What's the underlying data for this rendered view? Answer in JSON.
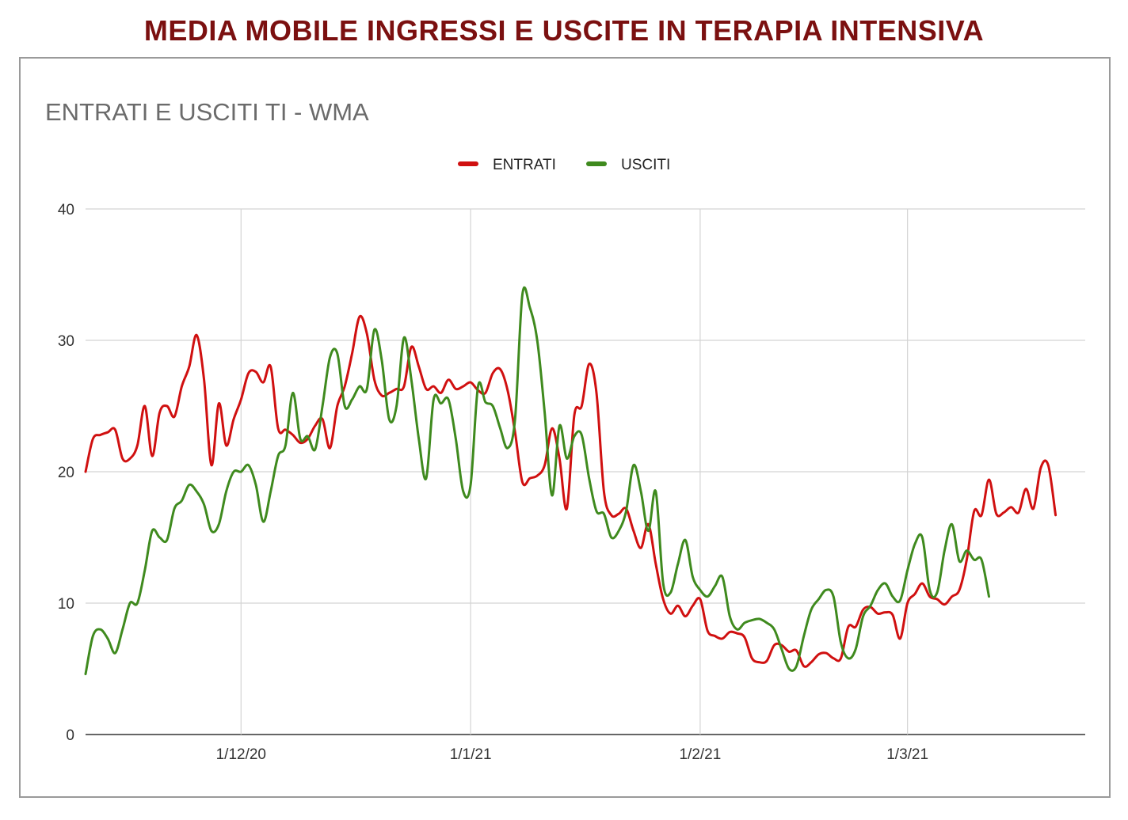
{
  "page_title": "MEDIA MOBILE INGRESSI E USCITE IN TERAPIA INTENSIVA",
  "colors": {
    "title": "#7b1010",
    "entrati": "#d01010",
    "usciti": "#3f8a1e",
    "grid": "#d4d4d4",
    "frame": "#9a9a9a"
  },
  "chart_data": {
    "type": "line",
    "title": "ENTRATI E USCITI TI  - WMA",
    "legend_position": "top-center",
    "grid": true,
    "xlim": [
      "2020-11-10",
      "2021-03-25"
    ],
    "ylim": [
      0,
      40
    ],
    "yticks": [
      0,
      10,
      20,
      30,
      40
    ],
    "xticks": [
      {
        "date": "2020-12-01",
        "label": "1/12/20"
      },
      {
        "date": "2021-01-01",
        "label": "1/1/21"
      },
      {
        "date": "2021-02-01",
        "label": "1/2/21"
      },
      {
        "date": "2021-03-01",
        "label": "1/3/21"
      }
    ],
    "series": [
      {
        "name": "ENTRATI",
        "color": "#d01010",
        "points": [
          [
            "2020-11-10",
            20.0
          ],
          [
            "2020-11-11",
            22.5
          ],
          [
            "2020-11-12",
            22.8
          ],
          [
            "2020-11-13",
            23.0
          ],
          [
            "2020-11-14",
            23.2
          ],
          [
            "2020-11-15",
            21.0
          ],
          [
            "2020-11-16",
            21.0
          ],
          [
            "2020-11-17",
            22.0
          ],
          [
            "2020-11-18",
            25.0
          ],
          [
            "2020-11-19",
            21.2
          ],
          [
            "2020-11-20",
            24.5
          ],
          [
            "2020-11-21",
            25.0
          ],
          [
            "2020-11-22",
            24.2
          ],
          [
            "2020-11-23",
            26.5
          ],
          [
            "2020-11-24",
            28.0
          ],
          [
            "2020-11-25",
            30.4
          ],
          [
            "2020-11-26",
            27.0
          ],
          [
            "2020-11-27",
            20.5
          ],
          [
            "2020-11-28",
            25.2
          ],
          [
            "2020-11-29",
            22.0
          ],
          [
            "2020-11-30",
            24.0
          ],
          [
            "2020-12-01",
            25.5
          ],
          [
            "2020-12-02",
            27.5
          ],
          [
            "2020-12-03",
            27.6
          ],
          [
            "2020-12-04",
            26.8
          ],
          [
            "2020-12-05",
            28.0
          ],
          [
            "2020-12-06",
            23.3
          ],
          [
            "2020-12-07",
            23.2
          ],
          [
            "2020-12-08",
            22.8
          ],
          [
            "2020-12-09",
            22.2
          ],
          [
            "2020-12-10",
            22.5
          ],
          [
            "2020-12-11",
            23.5
          ],
          [
            "2020-12-12",
            24.0
          ],
          [
            "2020-12-13",
            21.8
          ],
          [
            "2020-12-14",
            25.0
          ],
          [
            "2020-12-15",
            26.5
          ],
          [
            "2020-12-16",
            29.0
          ],
          [
            "2020-12-17",
            31.8
          ],
          [
            "2020-12-18",
            30.5
          ],
          [
            "2020-12-19",
            27.0
          ],
          [
            "2020-12-20",
            25.8
          ],
          [
            "2020-12-21",
            26.0
          ],
          [
            "2020-12-22",
            26.3
          ],
          [
            "2020-12-23",
            26.5
          ],
          [
            "2020-12-24",
            29.5
          ],
          [
            "2020-12-25",
            28.0
          ],
          [
            "2020-12-26",
            26.3
          ],
          [
            "2020-12-27",
            26.5
          ],
          [
            "2020-12-28",
            26.0
          ],
          [
            "2020-12-29",
            27.0
          ],
          [
            "2020-12-30",
            26.3
          ],
          [
            "2020-12-31",
            26.5
          ],
          [
            "2021-01-01",
            26.8
          ],
          [
            "2021-01-02",
            26.2
          ],
          [
            "2021-01-03",
            26.0
          ],
          [
            "2021-01-04",
            27.5
          ],
          [
            "2021-01-05",
            27.8
          ],
          [
            "2021-01-06",
            26.2
          ],
          [
            "2021-01-07",
            23.0
          ],
          [
            "2021-01-08",
            19.2
          ],
          [
            "2021-01-09",
            19.5
          ],
          [
            "2021-01-10",
            19.7
          ],
          [
            "2021-01-11",
            20.5
          ],
          [
            "2021-01-12",
            23.3
          ],
          [
            "2021-01-13",
            21.0
          ],
          [
            "2021-01-14",
            17.2
          ],
          [
            "2021-01-15",
            24.3
          ],
          [
            "2021-01-16",
            25.0
          ],
          [
            "2021-01-17",
            28.2
          ],
          [
            "2021-01-18",
            26.0
          ],
          [
            "2021-01-19",
            18.5
          ],
          [
            "2021-01-20",
            16.7
          ],
          [
            "2021-01-21",
            16.8
          ],
          [
            "2021-01-22",
            17.2
          ],
          [
            "2021-01-23",
            15.5
          ],
          [
            "2021-01-24",
            14.2
          ],
          [
            "2021-01-25",
            16.0
          ],
          [
            "2021-01-26",
            13.0
          ],
          [
            "2021-01-27",
            10.3
          ],
          [
            "2021-01-28",
            9.2
          ],
          [
            "2021-01-29",
            9.8
          ],
          [
            "2021-01-30",
            9.0
          ],
          [
            "2021-01-31",
            9.8
          ],
          [
            "2021-02-01",
            10.3
          ],
          [
            "2021-02-02",
            7.9
          ],
          [
            "2021-02-03",
            7.5
          ],
          [
            "2021-02-04",
            7.3
          ],
          [
            "2021-02-05",
            7.8
          ],
          [
            "2021-02-06",
            7.7
          ],
          [
            "2021-02-07",
            7.4
          ],
          [
            "2021-02-08",
            5.8
          ],
          [
            "2021-02-09",
            5.5
          ],
          [
            "2021-02-10",
            5.6
          ],
          [
            "2021-02-11",
            6.8
          ],
          [
            "2021-02-12",
            6.8
          ],
          [
            "2021-02-13",
            6.3
          ],
          [
            "2021-02-14",
            6.4
          ],
          [
            "2021-02-15",
            5.2
          ],
          [
            "2021-02-16",
            5.5
          ],
          [
            "2021-02-17",
            6.1
          ],
          [
            "2021-02-18",
            6.2
          ],
          [
            "2021-02-19",
            5.8
          ],
          [
            "2021-02-20",
            5.8
          ],
          [
            "2021-02-21",
            8.2
          ],
          [
            "2021-02-22",
            8.2
          ],
          [
            "2021-02-23",
            9.5
          ],
          [
            "2021-02-24",
            9.7
          ],
          [
            "2021-02-25",
            9.2
          ],
          [
            "2021-02-26",
            9.3
          ],
          [
            "2021-02-27",
            9.1
          ],
          [
            "2021-02-28",
            7.3
          ],
          [
            "2021-03-01",
            10.0
          ],
          [
            "2021-03-02",
            10.7
          ],
          [
            "2021-03-03",
            11.5
          ],
          [
            "2021-03-04",
            10.5
          ],
          [
            "2021-03-05",
            10.3
          ],
          [
            "2021-03-06",
            9.9
          ],
          [
            "2021-03-07",
            10.5
          ],
          [
            "2021-03-08",
            11.0
          ],
          [
            "2021-03-09",
            13.3
          ],
          [
            "2021-03-10",
            17.0
          ],
          [
            "2021-03-11",
            16.7
          ],
          [
            "2021-03-12",
            19.4
          ],
          [
            "2021-03-13",
            16.8
          ],
          [
            "2021-03-14",
            16.9
          ],
          [
            "2021-03-15",
            17.3
          ],
          [
            "2021-03-16",
            16.9
          ],
          [
            "2021-03-17",
            18.7
          ],
          [
            "2021-03-18",
            17.2
          ],
          [
            "2021-03-19",
            20.3
          ],
          [
            "2021-03-20",
            20.5
          ],
          [
            "2021-03-21",
            16.7
          ]
        ]
      },
      {
        "name": "USCITI",
        "color": "#3f8a1e",
        "points": [
          [
            "2020-11-10",
            4.6
          ],
          [
            "2020-11-11",
            7.5
          ],
          [
            "2020-11-12",
            8.0
          ],
          [
            "2020-11-13",
            7.3
          ],
          [
            "2020-11-14",
            6.2
          ],
          [
            "2020-11-15",
            8.0
          ],
          [
            "2020-11-16",
            10.0
          ],
          [
            "2020-11-17",
            10.0
          ],
          [
            "2020-11-18",
            12.5
          ],
          [
            "2020-11-19",
            15.5
          ],
          [
            "2020-11-20",
            15.0
          ],
          [
            "2020-11-21",
            14.8
          ],
          [
            "2020-11-22",
            17.2
          ],
          [
            "2020-11-23",
            17.8
          ],
          [
            "2020-11-24",
            19.0
          ],
          [
            "2020-11-25",
            18.5
          ],
          [
            "2020-11-26",
            17.5
          ],
          [
            "2020-11-27",
            15.5
          ],
          [
            "2020-11-28",
            16.0
          ],
          [
            "2020-11-29",
            18.5
          ],
          [
            "2020-11-30",
            20.0
          ],
          [
            "2020-12-01",
            20.0
          ],
          [
            "2020-12-02",
            20.5
          ],
          [
            "2020-12-03",
            19.0
          ],
          [
            "2020-12-04",
            16.2
          ],
          [
            "2020-12-05",
            18.5
          ],
          [
            "2020-12-06",
            21.2
          ],
          [
            "2020-12-07",
            22.0
          ],
          [
            "2020-12-08",
            26.0
          ],
          [
            "2020-12-09",
            22.5
          ],
          [
            "2020-12-10",
            22.7
          ],
          [
            "2020-12-11",
            21.7
          ],
          [
            "2020-12-12",
            25.0
          ],
          [
            "2020-12-13",
            28.7
          ],
          [
            "2020-12-14",
            29.0
          ],
          [
            "2020-12-15",
            25.0
          ],
          [
            "2020-12-16",
            25.5
          ],
          [
            "2020-12-17",
            26.5
          ],
          [
            "2020-12-18",
            26.3
          ],
          [
            "2020-12-19",
            30.8
          ],
          [
            "2020-12-20",
            28.5
          ],
          [
            "2020-12-21",
            24.0
          ],
          [
            "2020-12-22",
            25.0
          ],
          [
            "2020-12-23",
            30.2
          ],
          [
            "2020-12-24",
            27.0
          ],
          [
            "2020-12-25",
            22.5
          ],
          [
            "2020-12-26",
            19.5
          ],
          [
            "2020-12-27",
            25.5
          ],
          [
            "2020-12-28",
            25.2
          ],
          [
            "2020-12-29",
            25.5
          ],
          [
            "2020-12-30",
            22.5
          ],
          [
            "2020-12-31",
            18.5
          ],
          [
            "2021-01-01",
            19.0
          ],
          [
            "2021-01-02",
            26.5
          ],
          [
            "2021-01-03",
            25.3
          ],
          [
            "2021-01-04",
            25.0
          ],
          [
            "2021-01-05",
            23.3
          ],
          [
            "2021-01-06",
            21.8
          ],
          [
            "2021-01-07",
            24.0
          ],
          [
            "2021-01-08",
            33.5
          ],
          [
            "2021-01-09",
            32.5
          ],
          [
            "2021-01-10",
            30.0
          ],
          [
            "2021-01-11",
            24.5
          ],
          [
            "2021-01-12",
            18.2
          ],
          [
            "2021-01-13",
            23.5
          ],
          [
            "2021-01-14",
            21.0
          ],
          [
            "2021-01-15",
            22.7
          ],
          [
            "2021-01-16",
            22.8
          ],
          [
            "2021-01-17",
            19.5
          ],
          [
            "2021-01-18",
            17.0
          ],
          [
            "2021-01-19",
            16.8
          ],
          [
            "2021-01-20",
            15.0
          ],
          [
            "2021-01-21",
            15.5
          ],
          [
            "2021-01-22",
            17.0
          ],
          [
            "2021-01-23",
            20.5
          ],
          [
            "2021-01-24",
            18.5
          ],
          [
            "2021-01-25",
            15.5
          ],
          [
            "2021-01-26",
            18.5
          ],
          [
            "2021-01-27",
            11.5
          ],
          [
            "2021-01-28",
            10.8
          ],
          [
            "2021-01-29",
            13.0
          ],
          [
            "2021-01-30",
            14.8
          ],
          [
            "2021-01-31",
            12.0
          ],
          [
            "2021-02-01",
            11.0
          ],
          [
            "2021-02-02",
            10.5
          ],
          [
            "2021-02-03",
            11.3
          ],
          [
            "2021-02-04",
            12.0
          ],
          [
            "2021-02-05",
            9.0
          ],
          [
            "2021-02-06",
            8.0
          ],
          [
            "2021-02-07",
            8.5
          ],
          [
            "2021-02-08",
            8.7
          ],
          [
            "2021-02-09",
            8.8
          ],
          [
            "2021-02-10",
            8.5
          ],
          [
            "2021-02-11",
            8.0
          ],
          [
            "2021-02-12",
            6.5
          ],
          [
            "2021-02-13",
            5.0
          ],
          [
            "2021-02-14",
            5.2
          ],
          [
            "2021-02-15",
            7.5
          ],
          [
            "2021-02-16",
            9.5
          ],
          [
            "2021-02-17",
            10.3
          ],
          [
            "2021-02-18",
            11.0
          ],
          [
            "2021-02-19",
            10.5
          ],
          [
            "2021-02-20",
            7.0
          ],
          [
            "2021-02-21",
            5.8
          ],
          [
            "2021-02-22",
            6.5
          ],
          [
            "2021-02-23",
            9.0
          ],
          [
            "2021-02-24",
            9.8
          ],
          [
            "2021-02-25",
            11.0
          ],
          [
            "2021-02-26",
            11.5
          ],
          [
            "2021-02-27",
            10.5
          ],
          [
            "2021-02-28",
            10.2
          ],
          [
            "2021-03-01",
            12.5
          ],
          [
            "2021-03-02",
            14.5
          ],
          [
            "2021-03-03",
            15.0
          ],
          [
            "2021-03-04",
            11.0
          ],
          [
            "2021-03-05",
            10.8
          ],
          [
            "2021-03-06",
            14.0
          ],
          [
            "2021-03-07",
            16.0
          ],
          [
            "2021-03-08",
            13.2
          ],
          [
            "2021-03-09",
            14.0
          ],
          [
            "2021-03-10",
            13.3
          ],
          [
            "2021-03-11",
            13.3
          ],
          [
            "2021-03-12",
            10.5
          ]
        ]
      }
    ]
  }
}
